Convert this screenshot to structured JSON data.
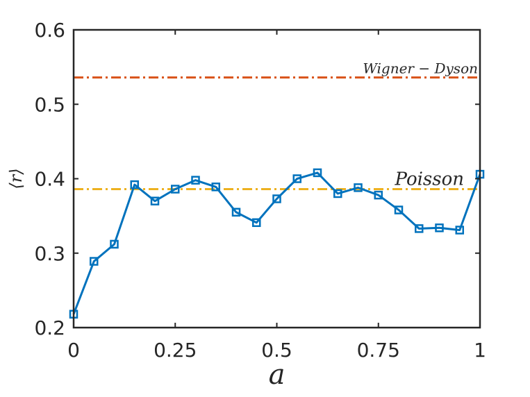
{
  "chart_data": {
    "type": "line",
    "xlabel": "a",
    "ylabel": "⟨r⟩",
    "xlim": [
      0,
      1
    ],
    "ylim": [
      0.2,
      0.6
    ],
    "x_ticks": [
      0,
      0.25,
      0.5,
      0.75,
      1
    ],
    "x_tick_labels": [
      "0",
      "0.25",
      "0.5",
      "0.75",
      "1"
    ],
    "y_ticks": [
      0.2,
      0.3,
      0.4,
      0.5,
      0.6
    ],
    "y_tick_labels": [
      "0.2",
      "0.3",
      "0.4",
      "0.5",
      "0.6"
    ],
    "grid": false,
    "series": [
      {
        "marker": "square",
        "color": "#0072BD",
        "x": [
          0,
          0.05,
          0.1,
          0.15,
          0.2,
          0.25,
          0.3,
          0.35,
          0.4,
          0.45,
          0.5,
          0.55,
          0.6,
          0.65,
          0.7,
          0.75,
          0.8,
          0.85,
          0.9,
          0.95,
          1.0
        ],
        "y": [
          0.218,
          0.289,
          0.312,
          0.392,
          0.37,
          0.386,
          0.398,
          0.389,
          0.355,
          0.341,
          0.373,
          0.4,
          0.408,
          0.38,
          0.388,
          0.378,
          0.358,
          0.333,
          0.334,
          0.331,
          0.406
        ]
      }
    ],
    "reference_lines": [
      {
        "label": "Wigner − Dyson",
        "y": 0.536,
        "color": "#D95319",
        "style": "dash-dot"
      },
      {
        "label": "Poisson",
        "y": 0.386,
        "color": "#EDB120",
        "style": "dash-dot"
      }
    ]
  }
}
